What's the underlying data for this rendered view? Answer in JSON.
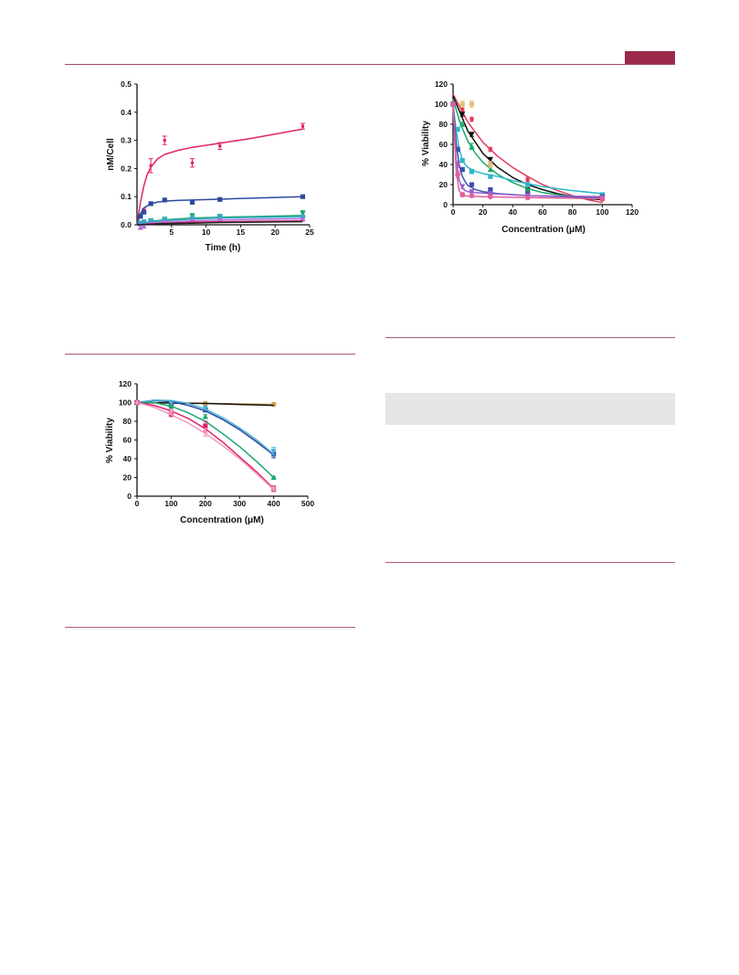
{
  "page": {
    "accent_color": "#9c2a4a",
    "rule_color": "#b35b7c",
    "shade_color": "#e5e6e8"
  },
  "chart_data": [
    {
      "id": "uptake",
      "type": "line",
      "title": "",
      "xlabel": "Time (h)",
      "ylabel": "nM/Cell",
      "xlim": [
        0,
        25
      ],
      "ylim": [
        0,
        0.5
      ],
      "xticks": [
        5,
        10,
        15,
        20,
        25
      ],
      "yticks": [
        0.0,
        0.1,
        0.2,
        0.3,
        0.4,
        0.5
      ],
      "yticklabels": [
        "0.0",
        "0.1",
        "0.2",
        "0.3",
        "0.4",
        "0.5"
      ],
      "grid": false,
      "series": [
        {
          "color": "#e0246a",
          "marker": "err",
          "x": [
            0.5,
            1,
            2,
            4,
            8,
            12,
            24
          ],
          "y": [
            0.03,
            0.05,
            0.21,
            0.3,
            0.22,
            0.28,
            0.35
          ],
          "err": [
            0.005,
            0.008,
            0.025,
            0.015,
            0.015,
            0.012,
            0.01
          ],
          "curve_x": [
            0,
            0.5,
            1,
            1.5,
            2,
            3,
            4,
            6,
            8,
            12,
            16,
            20,
            24
          ],
          "curve_y": [
            0,
            0.08,
            0.14,
            0.18,
            0.205,
            0.235,
            0.25,
            0.265,
            0.275,
            0.29,
            0.305,
            0.322,
            0.34
          ]
        },
        {
          "color": "#2e4a9e",
          "marker": "square",
          "x": [
            0.5,
            1,
            2,
            4,
            8,
            12,
            24
          ],
          "y": [
            0.03,
            0.045,
            0.075,
            0.088,
            0.08,
            0.09,
            0.1
          ],
          "err": [
            0.004,
            0.005,
            0.004,
            0.004,
            0.003,
            0.003,
            0.003
          ],
          "curve_x": [
            0,
            0.5,
            1,
            2,
            3,
            4,
            6,
            8,
            12,
            16,
            20,
            24
          ],
          "curve_y": [
            0,
            0.04,
            0.06,
            0.075,
            0.081,
            0.084,
            0.087,
            0.088,
            0.091,
            0.094,
            0.097,
            0.1
          ]
        },
        {
          "color": "#1aa86b",
          "marker": "tri-down",
          "x": [
            0.5,
            1,
            2,
            4,
            8,
            12,
            24
          ],
          "y": [
            0.005,
            0.01,
            0.015,
            0.02,
            0.03,
            0.03,
            0.04
          ],
          "err": [
            0.004,
            0.004,
            0.004,
            0.006,
            0.01,
            0.006,
            0.01
          ],
          "curve_x": [
            0,
            2,
            4,
            8,
            12,
            16,
            20,
            24
          ],
          "curve_y": [
            0,
            0.012,
            0.018,
            0.024,
            0.027,
            0.029,
            0.031,
            0.033
          ]
        },
        {
          "color": "#33a9c9",
          "marker": "circle",
          "x": [
            0.5,
            1,
            2,
            4,
            8,
            12,
            24
          ],
          "y": [
            0.005,
            0.01,
            0.015,
            0.02,
            0.025,
            0.03,
            0.03
          ],
          "err": [
            0.003,
            0.003,
            0.003,
            0.003,
            0.003,
            0.003,
            0.003
          ],
          "curve_x": [
            0,
            2,
            4,
            8,
            12,
            16,
            20,
            24
          ],
          "curve_y": [
            0,
            0.01,
            0.015,
            0.02,
            0.024,
            0.026,
            0.027,
            0.028
          ]
        },
        {
          "color": "#b46fd6",
          "marker": "tri-up",
          "x": [
            0.5,
            1,
            2,
            4,
            8,
            12,
            24
          ],
          "y": [
            -0.01,
            -0.005,
            0.005,
            0.01,
            0.015,
            0.018,
            0.02
          ],
          "err": [
            0.006,
            0.005,
            0.004,
            0.003,
            0.003,
            0.003,
            0.003
          ],
          "curve_x": [
            0,
            4,
            8,
            12,
            16,
            20,
            24
          ],
          "curve_y": [
            0,
            0.01,
            0.014,
            0.017,
            0.019,
            0.02,
            0.021
          ]
        },
        {
          "color": "#c8266d",
          "marker": "none",
          "x": [],
          "y": [],
          "err": [],
          "curve_x": [
            0,
            4,
            8,
            12,
            16,
            20,
            24
          ],
          "curve_y": [
            0,
            0.006,
            0.009,
            0.011,
            0.012,
            0.013,
            0.014
          ]
        },
        {
          "color": "#222222",
          "marker": "none",
          "x": [],
          "y": [],
          "err": [],
          "curve_x": [
            0,
            4,
            8,
            12,
            16,
            20,
            24
          ],
          "curve_y": [
            0,
            0.004,
            0.006,
            0.008,
            0.009,
            0.01,
            0.011
          ]
        }
      ]
    },
    {
      "id": "viability-lowdose",
      "type": "line",
      "title": "",
      "xlabel": "Concentration (μM)",
      "ylabel": "% Viability",
      "xlim": [
        0,
        120
      ],
      "ylim": [
        0,
        120
      ],
      "xticks": [
        0,
        20,
        40,
        60,
        80,
        100,
        120
      ],
      "yticks": [
        0,
        20,
        40,
        60,
        80,
        100,
        120
      ],
      "yticklabels": [
        "0",
        "20",
        "40",
        "60",
        "80",
        "100",
        "120"
      ],
      "grid": false,
      "series": [
        {
          "color": "#e43b5c",
          "marker": "diamond",
          "x": [
            0,
            6.25,
            12.5,
            25,
            50,
            100
          ],
          "y": [
            100,
            95,
            85,
            55,
            25,
            5
          ],
          "err": [
            0,
            2,
            2,
            2,
            2,
            1
          ],
          "curve_x": [
            0,
            10,
            20,
            30,
            40,
            50,
            60,
            70,
            80,
            90,
            100
          ],
          "curve_y": [
            110,
            82,
            62,
            48,
            37,
            28,
            20,
            14,
            9,
            5,
            2
          ]
        },
        {
          "color": "#111111",
          "marker": "tri-down",
          "x": [
            0,
            6.25,
            12.5,
            25,
            50,
            100
          ],
          "y": [
            100,
            90,
            70,
            45,
            15,
            7
          ],
          "err": [
            0,
            2,
            2,
            2,
            1,
            1
          ],
          "curve_x": [
            0,
            10,
            20,
            30,
            40,
            50,
            60,
            70,
            80,
            90,
            100
          ],
          "curve_y": [
            108,
            73,
            51,
            37,
            27,
            20,
            15,
            11,
            8,
            6,
            5
          ]
        },
        {
          "color": "#1aa86b",
          "marker": "tri-up",
          "x": [
            0,
            6.25,
            12.5,
            25,
            50,
            100
          ],
          "y": [
            100,
            80,
            58,
            35,
            14,
            8
          ],
          "err": [
            0,
            2,
            3,
            2,
            1,
            1
          ],
          "curve_x": [
            0,
            5,
            10,
            15,
            20,
            30,
            40,
            50,
            60,
            70,
            80,
            90,
            100
          ],
          "curve_y": [
            105,
            80,
            63,
            51,
            42,
            30,
            22,
            16,
            12,
            10,
            8,
            7,
            6
          ]
        },
        {
          "color": "#2bb8c9",
          "marker": "square",
          "x": [
            0,
            3.1,
            6.25,
            12.5,
            25,
            50,
            100
          ],
          "y": [
            100,
            75,
            44,
            33,
            28,
            20,
            10
          ],
          "err": [
            0,
            2,
            2,
            2,
            1,
            1,
            1
          ],
          "curve_x": [
            0,
            2,
            4,
            6,
            8,
            10,
            15,
            20,
            30,
            40,
            60,
            80,
            100
          ],
          "curve_y": [
            100,
            75,
            56,
            46,
            40,
            37,
            33,
            31,
            28,
            24,
            18,
            14,
            11
          ]
        },
        {
          "color": "#3e4fb0",
          "marker": "square",
          "x": [
            0,
            3.1,
            6.25,
            12.5,
            25,
            50,
            100
          ],
          "y": [
            100,
            55,
            35,
            20,
            15,
            11,
            8
          ],
          "err": [
            0,
            2,
            2,
            1,
            1,
            1,
            1
          ],
          "curve_x": [
            0,
            2,
            4,
            6,
            8,
            10,
            15,
            20,
            30,
            50,
            75,
            100
          ],
          "curve_y": [
            100,
            62,
            40,
            29,
            23,
            19,
            15,
            13,
            11,
            9,
            8,
            7
          ]
        },
        {
          "color": "#9a5fc8",
          "marker": "tri-down",
          "x": [
            0,
            3.1,
            6.25,
            12.5,
            25,
            50,
            100
          ],
          "y": [
            100,
            40,
            18,
            13,
            11,
            9,
            7
          ],
          "err": [
            0,
            3,
            2,
            1,
            1,
            1,
            1
          ],
          "curve_x": [
            0,
            2,
            4,
            6,
            8,
            10,
            15,
            25,
            50,
            100
          ],
          "curve_y": [
            100,
            45,
            25,
            17,
            14,
            13,
            12,
            11,
            9,
            8
          ]
        },
        {
          "color": "#e0609a",
          "marker": "circle",
          "x": [
            0,
            3.1,
            6.25,
            12.5,
            25,
            50,
            100
          ],
          "y": [
            100,
            30,
            10,
            9,
            8,
            7,
            6
          ],
          "err": [
            0,
            3,
            2,
            1,
            1,
            1,
            1
          ],
          "curve_x": [
            0,
            2,
            4,
            6,
            8,
            10,
            20,
            50,
            100
          ],
          "curve_y": [
            100,
            35,
            14,
            10,
            9,
            8.5,
            8,
            7,
            6
          ]
        },
        {
          "color": "#e8c07a",
          "marker": "circle",
          "x": [
            6.25,
            12.5,
            25
          ],
          "y": [
            100,
            100,
            40
          ],
          "err": [
            3,
            3,
            3
          ],
          "curve_x": [],
          "curve_y": []
        }
      ]
    },
    {
      "id": "viability-highdose",
      "type": "line",
      "title": "",
      "xlabel": "Concentration (μM)",
      "ylabel": "% Viability",
      "xlim": [
        0,
        500
      ],
      "ylim": [
        0,
        120
      ],
      "xticks": [
        0,
        100,
        200,
        300,
        400,
        500
      ],
      "yticks": [
        0,
        20,
        40,
        60,
        80,
        100,
        120
      ],
      "yticklabels": [
        "0",
        "20",
        "40",
        "60",
        "80",
        "100",
        "120"
      ],
      "grid": false,
      "series": [
        {
          "color": "#c9a24a",
          "marker": "circle",
          "x": [
            0,
            100,
            200,
            400
          ],
          "y": [
            100,
            100,
            99,
            98
          ],
          "err": [
            0,
            1,
            1,
            1
          ],
          "curve_x": [
            0,
            100,
            200,
            300,
            400
          ],
          "curve_y": [
            100,
            99.5,
            99,
            98.5,
            98
          ]
        },
        {
          "color": "#111111",
          "marker": "none",
          "x": [],
          "y": [],
          "err": [],
          "curve_x": [
            0,
            100,
            200,
            300,
            400
          ],
          "curve_y": [
            100,
            99.5,
            99,
            98,
            97
          ]
        },
        {
          "color": "#2e4a9e",
          "marker": "square",
          "x": [
            0,
            100,
            200,
            400
          ],
          "y": [
            100,
            97,
            92,
            45
          ],
          "err": [
            0,
            2,
            2,
            4
          ],
          "curve_x": [
            0,
            50,
            100,
            150,
            200,
            250,
            300,
            350,
            400
          ],
          "curve_y": [
            100,
            102,
            101,
            97,
            91,
            82,
            71,
            58,
            44
          ]
        },
        {
          "color": "#4ab0d8",
          "marker": "tri-down",
          "x": [
            0,
            100,
            200,
            400
          ],
          "y": [
            100,
            99,
            94,
            48
          ],
          "err": [
            0,
            2,
            2,
            4
          ],
          "curve_x": [
            0,
            50,
            100,
            150,
            200,
            250,
            300,
            350,
            400
          ],
          "curve_y": [
            100,
            102.5,
            102,
            99,
            93,
            84,
            73,
            60,
            45
          ]
        },
        {
          "color": "#1aa86b",
          "marker": "tri-up",
          "x": [
            0,
            100,
            200,
            400
          ],
          "y": [
            100,
            95,
            85,
            20
          ],
          "err": [
            0,
            2,
            2,
            1
          ],
          "curve_x": [
            0,
            50,
            100,
            150,
            200,
            250,
            300,
            350,
            400
          ],
          "curve_y": [
            100,
            100,
            96,
            89,
            80,
            67,
            53,
            37,
            20
          ]
        },
        {
          "color": "#e0246a",
          "marker": "square",
          "x": [
            0,
            100,
            200,
            400
          ],
          "y": [
            100,
            88,
            75,
            8
          ],
          "err": [
            0,
            3,
            5,
            3
          ],
          "curve_x": [
            0,
            50,
            100,
            150,
            200,
            250,
            300,
            350,
            400
          ],
          "curve_y": [
            100,
            97,
            91,
            83,
            72,
            58,
            42,
            26,
            8
          ]
        },
        {
          "color": "#f09ac0",
          "marker": "diamond",
          "x": [
            0,
            100,
            200,
            400
          ],
          "y": [
            100,
            90,
            68,
            8
          ],
          "err": [
            0,
            3,
            4,
            2
          ],
          "curve_x": [
            0,
            50,
            100,
            150,
            200,
            250,
            300,
            350,
            400
          ],
          "curve_y": [
            100,
            95,
            87,
            78,
            67,
            54,
            40,
            24,
            7
          ]
        }
      ]
    }
  ]
}
